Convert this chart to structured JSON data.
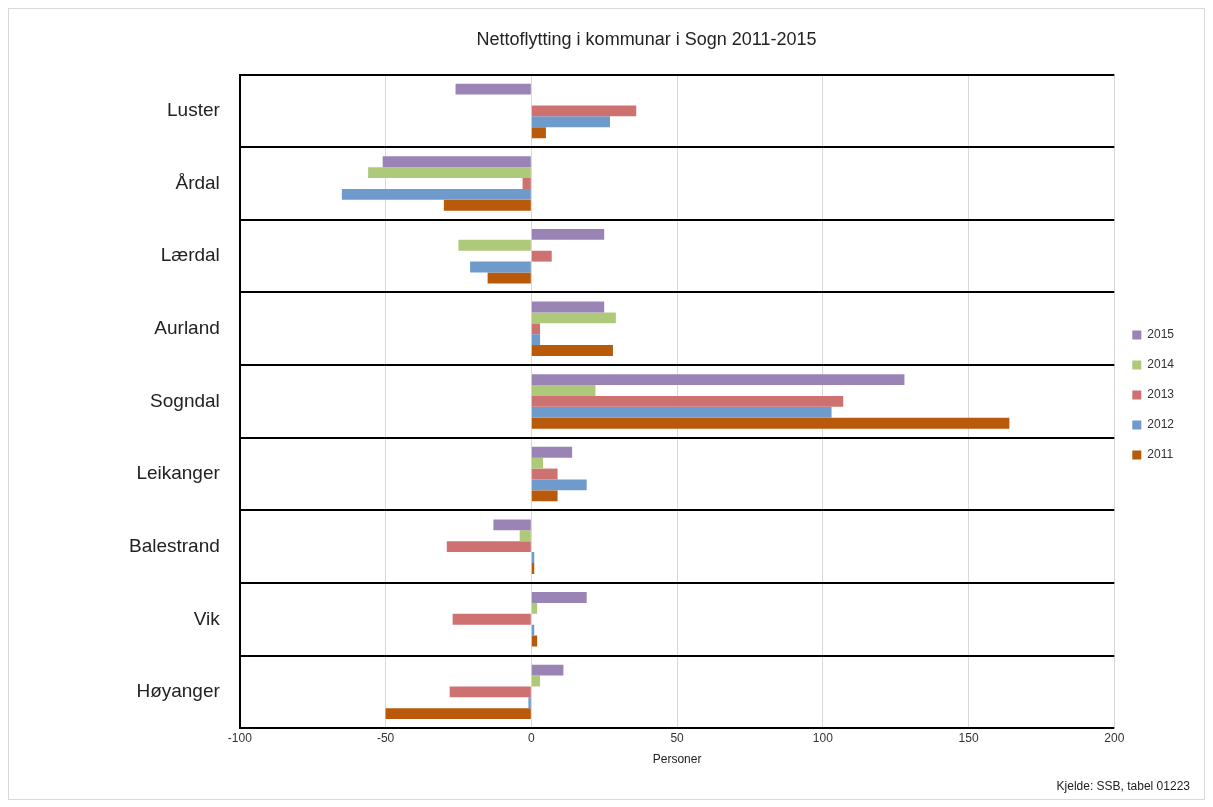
{
  "chart_data": {
    "type": "bar",
    "orientation": "horizontal",
    "title": "Nettoflytting i kommunar i Sogn 2011-2015",
    "xlabel": "Personer",
    "categories": [
      "Luster",
      "Årdal",
      "Lærdal",
      "Aurland",
      "Sogndal",
      "Leikanger",
      "Balestrand",
      "Vik",
      "Høyanger"
    ],
    "series": [
      {
        "name": "2015",
        "color": "#9a83b5",
        "values": [
          -26,
          -51,
          25,
          25,
          128,
          14,
          -13,
          19,
          11
        ]
      },
      {
        "name": "2014",
        "color": "#afc97a",
        "values": [
          0,
          -56,
          -25,
          29,
          22,
          4,
          -4,
          2,
          3
        ]
      },
      {
        "name": "2013",
        "color": "#cd7270",
        "values": [
          36,
          -3,
          7,
          3,
          107,
          9,
          -29,
          -27,
          -28
        ]
      },
      {
        "name": "2012",
        "color": "#6f9bcc",
        "values": [
          27,
          -65,
          -21,
          3,
          103,
          19,
          1,
          1,
          -1
        ]
      },
      {
        "name": "2011",
        "color": "#b85a0a",
        "values": [
          5,
          -30,
          -15,
          28,
          164,
          9,
          1,
          2,
          -50
        ]
      }
    ],
    "xlim": [
      -100,
      200
    ],
    "xticks": [
      -100,
      -50,
      0,
      50,
      100,
      150,
      200
    ],
    "grid": true,
    "legend": "right",
    "annotations": [
      "Kjelde: SSB, tabel 01223"
    ]
  }
}
